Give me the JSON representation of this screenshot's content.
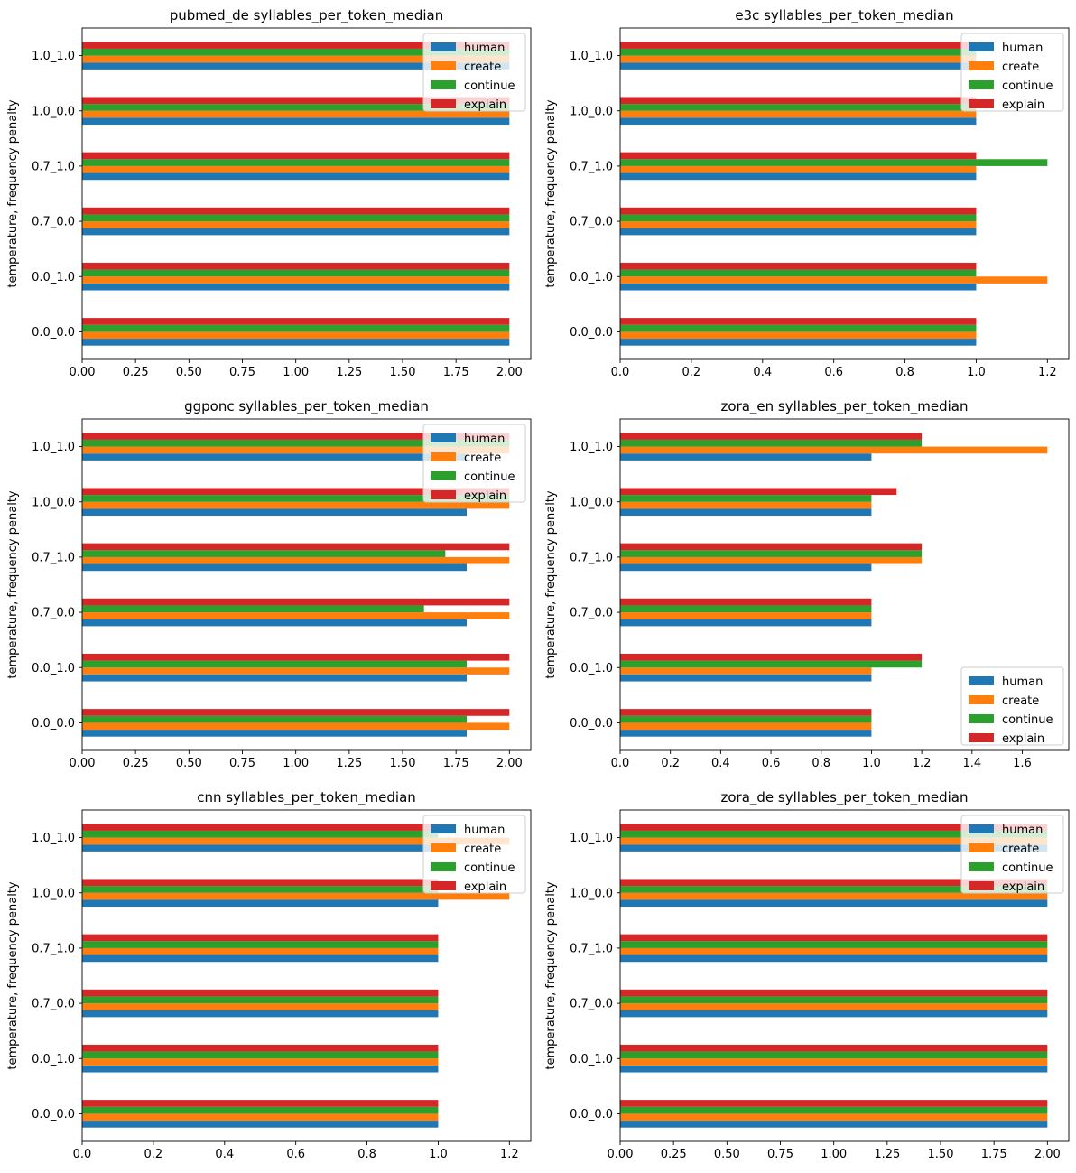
{
  "figure": {
    "background": "#ffffff",
    "series_colors": {
      "human": "#1f77b4",
      "create": "#ff7f0e",
      "continue": "#2ca02c",
      "explain": "#d62728"
    }
  },
  "chart_data": [
    {
      "type": "bar",
      "orientation": "horizontal",
      "title": "pubmed_de syllables_per_token_median",
      "ylabel": "temperature, frequency penalty",
      "xlabel": "",
      "categories": [
        "0.0_0.0",
        "0.0_1.0",
        "0.7_0.0",
        "0.7_1.0",
        "1.0_0.0",
        "1.0_1.0"
      ],
      "xlim": [
        0,
        2.1
      ],
      "xticks": [
        0,
        0.25,
        0.5,
        0.75,
        1.0,
        1.25,
        1.5,
        1.75,
        2.0
      ],
      "xtick_labels": [
        "0.00",
        "0.25",
        "0.50",
        "0.75",
        "1.00",
        "1.25",
        "1.50",
        "1.75",
        "2.00"
      ],
      "legend_position": "upper right",
      "series": [
        {
          "name": "human",
          "values": [
            2.0,
            2.0,
            2.0,
            2.0,
            2.0,
            2.0
          ]
        },
        {
          "name": "create",
          "values": [
            2.0,
            2.0,
            2.0,
            2.0,
            2.0,
            2.0
          ]
        },
        {
          "name": "continue",
          "values": [
            2.0,
            2.0,
            2.0,
            2.0,
            2.0,
            2.0
          ]
        },
        {
          "name": "explain",
          "values": [
            2.0,
            2.0,
            2.0,
            2.0,
            2.0,
            2.0
          ]
        }
      ]
    },
    {
      "type": "bar",
      "orientation": "horizontal",
      "title": "e3c syllables_per_token_median",
      "ylabel": "temperature, frequency penalty",
      "xlabel": "",
      "categories": [
        "0.0_0.0",
        "0.0_1.0",
        "0.7_0.0",
        "0.7_1.0",
        "1.0_0.0",
        "1.0_1.0"
      ],
      "xlim": [
        0,
        1.26
      ],
      "xticks": [
        0,
        0.2,
        0.4,
        0.6,
        0.8,
        1.0,
        1.2
      ],
      "xtick_labels": [
        "0.0",
        "0.2",
        "0.4",
        "0.6",
        "0.8",
        "1.0",
        "1.2"
      ],
      "legend_position": "upper right",
      "series": [
        {
          "name": "human",
          "values": [
            1.0,
            1.0,
            1.0,
            1.0,
            1.0,
            1.0
          ]
        },
        {
          "name": "create",
          "values": [
            1.0,
            1.2,
            1.0,
            1.0,
            1.0,
            1.0
          ]
        },
        {
          "name": "continue",
          "values": [
            1.0,
            1.0,
            1.0,
            1.2,
            1.0,
            1.0
          ]
        },
        {
          "name": "explain",
          "values": [
            1.0,
            1.0,
            1.0,
            1.0,
            1.0,
            1.0
          ]
        }
      ]
    },
    {
      "type": "bar",
      "orientation": "horizontal",
      "title": "ggponc syllables_per_token_median",
      "ylabel": "temperature, frequency penalty",
      "xlabel": "",
      "categories": [
        "0.0_0.0",
        "0.0_1.0",
        "0.7_0.0",
        "0.7_1.0",
        "1.0_0.0",
        "1.0_1.0"
      ],
      "xlim": [
        0,
        2.1
      ],
      "xticks": [
        0,
        0.25,
        0.5,
        0.75,
        1.0,
        1.25,
        1.5,
        1.75,
        2.0
      ],
      "xtick_labels": [
        "0.00",
        "0.25",
        "0.50",
        "0.75",
        "1.00",
        "1.25",
        "1.50",
        "1.75",
        "2.00"
      ],
      "legend_position": "upper right",
      "series": [
        {
          "name": "human",
          "values": [
            1.8,
            1.8,
            1.8,
            1.8,
            1.8,
            1.8
          ]
        },
        {
          "name": "create",
          "values": [
            2.0,
            2.0,
            2.0,
            2.0,
            2.0,
            2.0
          ]
        },
        {
          "name": "continue",
          "values": [
            1.8,
            1.8,
            1.6,
            1.7,
            2.0,
            2.0
          ]
        },
        {
          "name": "explain",
          "values": [
            2.0,
            2.0,
            2.0,
            2.0,
            2.0,
            2.0
          ]
        }
      ]
    },
    {
      "type": "bar",
      "orientation": "horizontal",
      "title": "zora_en syllables_per_token_median",
      "ylabel": "temperature, frequency penalty",
      "xlabel": "",
      "categories": [
        "0.0_0.0",
        "0.0_1.0",
        "0.7_0.0",
        "0.7_1.0",
        "1.0_0.0",
        "1.0_1.0"
      ],
      "xlim": [
        0,
        1.785
      ],
      "xticks": [
        0,
        0.2,
        0.4,
        0.6,
        0.8,
        1.0,
        1.2,
        1.4,
        1.6
      ],
      "xtick_labels": [
        "0.0",
        "0.2",
        "0.4",
        "0.6",
        "0.8",
        "1.0",
        "1.2",
        "1.4",
        "1.6"
      ],
      "legend_position": "lower right",
      "series": [
        {
          "name": "human",
          "values": [
            1.0,
            1.0,
            1.0,
            1.0,
            1.0,
            1.0
          ]
        },
        {
          "name": "create",
          "values": [
            1.0,
            1.0,
            1.0,
            1.2,
            1.0,
            1.7
          ]
        },
        {
          "name": "continue",
          "values": [
            1.0,
            1.2,
            1.0,
            1.2,
            1.0,
            1.2
          ]
        },
        {
          "name": "explain",
          "values": [
            1.0,
            1.2,
            1.0,
            1.2,
            1.1,
            1.2
          ]
        }
      ]
    },
    {
      "type": "bar",
      "orientation": "horizontal",
      "title": "cnn syllables_per_token_median",
      "ylabel": "temperature, frequency penalty",
      "xlabel": "",
      "categories": [
        "0.0_0.0",
        "0.0_1.0",
        "0.7_0.0",
        "0.7_1.0",
        "1.0_0.0",
        "1.0_1.0"
      ],
      "xlim": [
        0,
        1.26
      ],
      "xticks": [
        0,
        0.2,
        0.4,
        0.6,
        0.8,
        1.0,
        1.2
      ],
      "xtick_labels": [
        "0.0",
        "0.2",
        "0.4",
        "0.6",
        "0.8",
        "1.0",
        "1.2"
      ],
      "legend_position": "upper right",
      "series": [
        {
          "name": "human",
          "values": [
            1.0,
            1.0,
            1.0,
            1.0,
            1.0,
            1.0
          ]
        },
        {
          "name": "create",
          "values": [
            1.0,
            1.0,
            1.0,
            1.0,
            1.2,
            1.2
          ]
        },
        {
          "name": "continue",
          "values": [
            1.0,
            1.0,
            1.0,
            1.0,
            1.0,
            1.0
          ]
        },
        {
          "name": "explain",
          "values": [
            1.0,
            1.0,
            1.0,
            1.0,
            1.0,
            1.0
          ]
        }
      ]
    },
    {
      "type": "bar",
      "orientation": "horizontal",
      "title": "zora_de syllables_per_token_median",
      "ylabel": "temperature, frequency penalty",
      "xlabel": "",
      "categories": [
        "0.0_0.0",
        "0.0_1.0",
        "0.7_0.0",
        "0.7_1.0",
        "1.0_0.0",
        "1.0_1.0"
      ],
      "xlim": [
        0,
        2.1
      ],
      "xticks": [
        0,
        0.25,
        0.5,
        0.75,
        1.0,
        1.25,
        1.5,
        1.75,
        2.0
      ],
      "xtick_labels": [
        "0.00",
        "0.25",
        "0.50",
        "0.75",
        "1.00",
        "1.25",
        "1.50",
        "1.75",
        "2.00"
      ],
      "legend_position": "upper right",
      "series": [
        {
          "name": "human",
          "values": [
            2.0,
            2.0,
            2.0,
            2.0,
            2.0,
            2.0
          ]
        },
        {
          "name": "create",
          "values": [
            2.0,
            2.0,
            2.0,
            2.0,
            2.0,
            2.0
          ]
        },
        {
          "name": "continue",
          "values": [
            2.0,
            2.0,
            2.0,
            2.0,
            2.0,
            2.0
          ]
        },
        {
          "name": "explain",
          "values": [
            2.0,
            2.0,
            2.0,
            2.0,
            2.0,
            2.0
          ]
        }
      ]
    }
  ]
}
